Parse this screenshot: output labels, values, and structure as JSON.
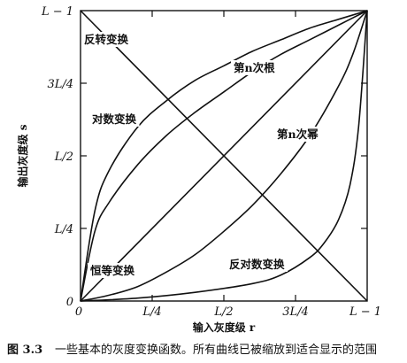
{
  "caption": {
    "figure_no": "图 3.3",
    "text": "一些基本的灰度变换函数。所有曲线已被缩放到适合显示的范围"
  },
  "colors": {
    "ink": "#111111",
    "background": "#ffffff"
  },
  "chart_data": {
    "type": "line",
    "xlabel": "输入灰度级 r",
    "ylabel": "输出灰度级 s",
    "xlim": [
      0,
      1
    ],
    "ylim": [
      0,
      1
    ],
    "grid": false,
    "x_ticks": [
      {
        "value": 0,
        "label": "0"
      },
      {
        "value": 0.25,
        "label": "L/4"
      },
      {
        "value": 0.5,
        "label": "L/2"
      },
      {
        "value": 0.75,
        "label": "3L/4"
      },
      {
        "value": 1,
        "label": "L − 1"
      }
    ],
    "y_ticks": [
      {
        "value": 0,
        "label": "0"
      },
      {
        "value": 0.25,
        "label": "L/4"
      },
      {
        "value": 0.5,
        "label": "L/2"
      },
      {
        "value": 0.75,
        "label": "3L/4"
      },
      {
        "value": 1,
        "label": "L − 1"
      }
    ],
    "series": [
      {
        "name": "反转变换",
        "x": [
          0,
          1
        ],
        "y": [
          1,
          0
        ]
      },
      {
        "name": "恒等变换",
        "x": [
          0,
          1
        ],
        "y": [
          0,
          1
        ]
      },
      {
        "name": "对数变换",
        "x": [
          0,
          0.05,
          0.1,
          0.2,
          0.3,
          0.4,
          0.5,
          0.6,
          0.7,
          0.8,
          0.9,
          1.0
        ],
        "y": [
          0,
          0.31,
          0.45,
          0.6,
          0.69,
          0.76,
          0.81,
          0.86,
          0.9,
          0.94,
          0.97,
          1.0
        ]
      },
      {
        "name": "第n次根",
        "x": [
          0,
          0.05,
          0.1,
          0.2,
          0.3,
          0.4,
          0.5,
          0.6,
          0.7,
          0.8,
          0.9,
          1.0
        ],
        "y": [
          0,
          0.24,
          0.34,
          0.47,
          0.57,
          0.65,
          0.72,
          0.79,
          0.85,
          0.9,
          0.95,
          1.0
        ]
      },
      {
        "name": "第n次幂",
        "x": [
          0,
          0.1,
          0.2,
          0.3,
          0.4,
          0.5,
          0.6,
          0.7,
          0.8,
          0.9,
          0.95,
          1.0
        ],
        "y": [
          0,
          0.02,
          0.05,
          0.1,
          0.16,
          0.24,
          0.33,
          0.44,
          0.57,
          0.74,
          0.85,
          1.0
        ]
      },
      {
        "name": "反对数变换",
        "x": [
          0,
          0.2,
          0.4,
          0.6,
          0.7,
          0.8,
          0.85,
          0.9,
          0.94,
          0.97,
          1.0
        ],
        "y": [
          0,
          0.01,
          0.03,
          0.06,
          0.09,
          0.15,
          0.2,
          0.28,
          0.4,
          0.6,
          1.0
        ]
      }
    ],
    "curve_labels": [
      {
        "series": "反转变换",
        "text": "反转变换"
      },
      {
        "series": "对数变换",
        "text": "对数变换"
      },
      {
        "series": "第n次根",
        "text": "第n次根"
      },
      {
        "series": "第n次幂",
        "text": "第n次幂"
      },
      {
        "series": "恒等变换",
        "text": "恒等变换"
      },
      {
        "series": "反对数变换",
        "text": "反对数变换"
      }
    ]
  }
}
